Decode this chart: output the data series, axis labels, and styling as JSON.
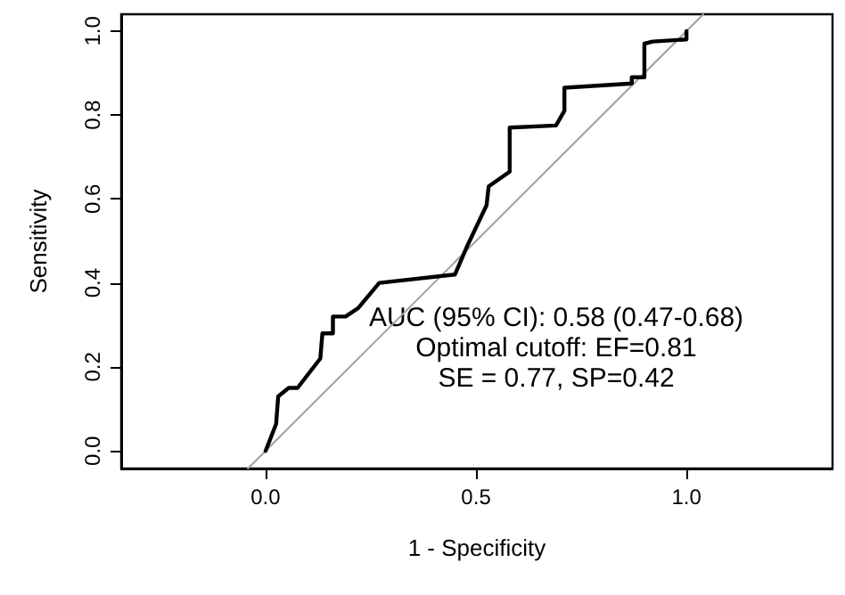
{
  "chart_data": {
    "type": "line",
    "xlabel": "1 - Specificity",
    "ylabel": "Sensitivity",
    "xlim": [
      -0.343,
      1.347
    ],
    "ylim": [
      -0.042,
      1.04
    ],
    "xticks": [
      {
        "value": 0,
        "label": "0.0"
      },
      0.5,
      {
        "value": 1,
        "label": "1.0"
      }
    ],
    "yticks": [
      {
        "value": 0,
        "label": "0.0"
      },
      0.2,
      0.4,
      0.6,
      0.8,
      {
        "value": 1,
        "label": "1.0"
      }
    ],
    "grid": false,
    "marker": "none",
    "line_style": "solid",
    "annotations": [
      "AUC (95% CI): 0.58 (0.47-0.68)",
      "Optimal cutoff: EF=0.81",
      "SE = 0.77, SP=0.42"
    ],
    "series": [
      {
        "color": "#a0a0a0",
        "x": [
          -0.042,
          1.04
        ],
        "values": [
          -0.042,
          1.04
        ]
      },
      {
        "color": "#000000",
        "x": [
          0,
          0.025,
          0.03,
          0.055,
          0.076,
          0.13,
          0.135,
          0.16,
          0.16,
          0.19,
          0.22,
          0.27,
          0.45,
          0.48,
          0.525,
          0.53,
          0.58,
          0.58,
          0.69,
          0.71,
          0.71,
          0.87,
          0.87,
          0.9,
          0.9,
          0.92,
          1.0,
          1.0
        ],
        "values": [
          0,
          0.064,
          0.13,
          0.15,
          0.15,
          0.22,
          0.28,
          0.28,
          0.32,
          0.32,
          0.34,
          0.4,
          0.42,
          0.49,
          0.585,
          0.63,
          0.665,
          0.77,
          0.775,
          0.81,
          0.865,
          0.875,
          0.89,
          0.89,
          0.97,
          0.975,
          0.98,
          1.0
        ]
      }
    ]
  }
}
